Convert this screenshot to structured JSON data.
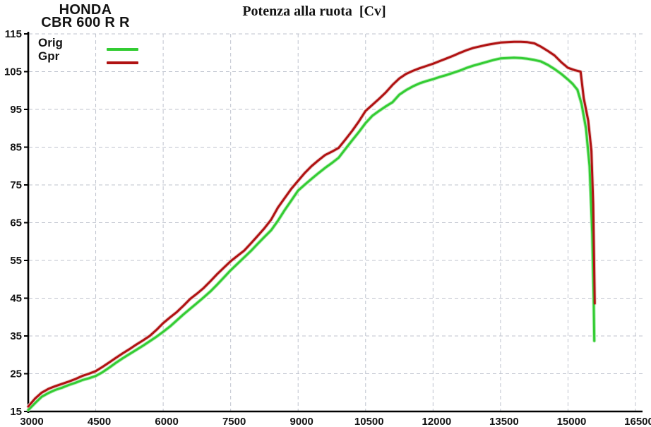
{
  "header": {
    "brand": "HONDA",
    "model": "CBR 600 R R"
  },
  "title": "Potenza alla ruota  [Cv]",
  "legend": [
    {
      "label": "Orig"
    },
    {
      "label": "Gpr"
    }
  ],
  "colors": {
    "background": "#ffffff",
    "axis": "#000000",
    "grid": "#bfc3ce",
    "text": "#141414",
    "orig_green": "#33cc33",
    "gpr_red": "#b01212"
  },
  "chart_data": {
    "type": "line",
    "title": "Potenza alla ruota [Cv]",
    "xlabel": "",
    "ylabel": "",
    "xlim": [
      3000,
      16500
    ],
    "ylim": [
      15,
      115
    ],
    "x_ticks": [
      3000,
      4500,
      6000,
      7500,
      9000,
      10500,
      12000,
      13500,
      15000,
      16500
    ],
    "y_ticks": [
      15,
      25,
      35,
      45,
      55,
      65,
      75,
      85,
      95,
      105,
      115
    ],
    "grid": true,
    "grid_dash": "5 4",
    "grid_color": "#bfc3ce",
    "axis_color": "#000000",
    "legend_position": "top-left",
    "series": [
      {
        "name": "Orig",
        "color": "#33cc33",
        "halo": "#b7eeb7",
        "points": [
          [
            3000,
            15.4
          ],
          [
            3150,
            17.2
          ],
          [
            3300,
            18.9
          ],
          [
            3450,
            19.9
          ],
          [
            3600,
            20.7
          ],
          [
            3750,
            21.3
          ],
          [
            3900,
            22.0
          ],
          [
            4050,
            22.6
          ],
          [
            4200,
            23.3
          ],
          [
            4350,
            23.8
          ],
          [
            4500,
            24.4
          ],
          [
            4650,
            25.4
          ],
          [
            4800,
            26.6
          ],
          [
            4950,
            27.9
          ],
          [
            5100,
            29.1
          ],
          [
            5250,
            30.2
          ],
          [
            5400,
            31.3
          ],
          [
            5550,
            32.4
          ],
          [
            5700,
            33.6
          ],
          [
            5850,
            34.8
          ],
          [
            6000,
            36.1
          ],
          [
            6150,
            37.5
          ],
          [
            6300,
            39.1
          ],
          [
            6450,
            40.7
          ],
          [
            6600,
            42.2
          ],
          [
            6750,
            43.7
          ],
          [
            6900,
            45.2
          ],
          [
            7050,
            46.8
          ],
          [
            7200,
            48.6
          ],
          [
            7350,
            50.5
          ],
          [
            7500,
            52.4
          ],
          [
            7650,
            54.1
          ],
          [
            7800,
            55.8
          ],
          [
            7950,
            57.5
          ],
          [
            8100,
            59.4
          ],
          [
            8250,
            61.2
          ],
          [
            8400,
            63.0
          ],
          [
            8550,
            65.5
          ],
          [
            8700,
            68.3
          ],
          [
            8850,
            70.9
          ],
          [
            9000,
            73.5
          ],
          [
            9150,
            75.1
          ],
          [
            9300,
            76.6
          ],
          [
            9450,
            78.1
          ],
          [
            9600,
            79.5
          ],
          [
            9750,
            80.8
          ],
          [
            9900,
            82.2
          ],
          [
            10050,
            84.5
          ],
          [
            10200,
            86.8
          ],
          [
            10350,
            89.0
          ],
          [
            10500,
            91.4
          ],
          [
            10650,
            93.3
          ],
          [
            10800,
            94.6
          ],
          [
            10950,
            95.8
          ],
          [
            11100,
            96.9
          ],
          [
            11250,
            98.9
          ],
          [
            11400,
            100.1
          ],
          [
            11550,
            101.1
          ],
          [
            11700,
            101.9
          ],
          [
            11850,
            102.5
          ],
          [
            12000,
            103.0
          ],
          [
            12150,
            103.6
          ],
          [
            12300,
            104.1
          ],
          [
            12450,
            104.7
          ],
          [
            12600,
            105.3
          ],
          [
            12750,
            106.0
          ],
          [
            12900,
            106.6
          ],
          [
            13050,
            107.1
          ],
          [
            13200,
            107.6
          ],
          [
            13350,
            108.1
          ],
          [
            13500,
            108.5
          ],
          [
            13650,
            108.6
          ],
          [
            13800,
            108.7
          ],
          [
            13950,
            108.6
          ],
          [
            14100,
            108.4
          ],
          [
            14250,
            108.1
          ],
          [
            14400,
            107.7
          ],
          [
            14550,
            106.8
          ],
          [
            14700,
            105.7
          ],
          [
            14850,
            104.4
          ],
          [
            15000,
            102.9
          ],
          [
            15100,
            101.8
          ],
          [
            15210,
            100.2
          ],
          [
            15300,
            96.5
          ],
          [
            15400,
            90.0
          ],
          [
            15480,
            80.0
          ],
          [
            15540,
            62.0
          ],
          [
            15570,
            45.0
          ],
          [
            15585,
            33.7
          ]
        ]
      },
      {
        "name": "Gpr",
        "color": "#b01212",
        "halo": "#e9c8c8",
        "points": [
          [
            3000,
            16.3
          ],
          [
            3150,
            18.4
          ],
          [
            3300,
            20.0
          ],
          [
            3450,
            21.0
          ],
          [
            3600,
            21.7
          ],
          [
            3750,
            22.3
          ],
          [
            3900,
            22.9
          ],
          [
            4050,
            23.6
          ],
          [
            4200,
            24.4
          ],
          [
            4350,
            25.0
          ],
          [
            4500,
            25.7
          ],
          [
            4650,
            26.8
          ],
          [
            4800,
            28.0
          ],
          [
            4950,
            29.2
          ],
          [
            5100,
            30.4
          ],
          [
            5250,
            31.5
          ],
          [
            5400,
            32.7
          ],
          [
            5550,
            33.8
          ],
          [
            5700,
            35.0
          ],
          [
            5850,
            36.6
          ],
          [
            6000,
            38.4
          ],
          [
            6150,
            39.9
          ],
          [
            6300,
            41.3
          ],
          [
            6450,
            43.0
          ],
          [
            6600,
            44.8
          ],
          [
            6750,
            46.2
          ],
          [
            6900,
            47.7
          ],
          [
            7050,
            49.5
          ],
          [
            7200,
            51.4
          ],
          [
            7350,
            53.1
          ],
          [
            7500,
            54.8
          ],
          [
            7650,
            56.2
          ],
          [
            7800,
            57.6
          ],
          [
            7950,
            59.5
          ],
          [
            8100,
            61.5
          ],
          [
            8250,
            63.5
          ],
          [
            8400,
            65.8
          ],
          [
            8550,
            69.0
          ],
          [
            8700,
            71.5
          ],
          [
            8850,
            74.0
          ],
          [
            9000,
            76.1
          ],
          [
            9150,
            78.2
          ],
          [
            9300,
            80.0
          ],
          [
            9450,
            81.5
          ],
          [
            9600,
            82.9
          ],
          [
            9750,
            83.8
          ],
          [
            9900,
            84.8
          ],
          [
            10050,
            87.0
          ],
          [
            10200,
            89.3
          ],
          [
            10350,
            91.8
          ],
          [
            10500,
            94.6
          ],
          [
            10650,
            96.2
          ],
          [
            10800,
            97.8
          ],
          [
            10950,
            99.5
          ],
          [
            11100,
            101.5
          ],
          [
            11250,
            103.2
          ],
          [
            11400,
            104.4
          ],
          [
            11550,
            105.2
          ],
          [
            11700,
            105.9
          ],
          [
            11850,
            106.5
          ],
          [
            12000,
            107.1
          ],
          [
            12150,
            107.8
          ],
          [
            12300,
            108.5
          ],
          [
            12450,
            109.2
          ],
          [
            12600,
            110.0
          ],
          [
            12750,
            110.7
          ],
          [
            12900,
            111.3
          ],
          [
            13050,
            111.7
          ],
          [
            13200,
            112.1
          ],
          [
            13350,
            112.4
          ],
          [
            13500,
            112.7
          ],
          [
            13650,
            112.8
          ],
          [
            13800,
            112.9
          ],
          [
            13950,
            112.9
          ],
          [
            14100,
            112.8
          ],
          [
            14250,
            112.5
          ],
          [
            14400,
            111.6
          ],
          [
            14550,
            110.5
          ],
          [
            14700,
            109.3
          ],
          [
            14850,
            107.5
          ],
          [
            15000,
            106.0
          ],
          [
            15150,
            105.4
          ],
          [
            15280,
            105.0
          ],
          [
            15350,
            98.0
          ],
          [
            15450,
            92.0
          ],
          [
            15520,
            84.0
          ],
          [
            15560,
            70.0
          ],
          [
            15580,
            55.0
          ],
          [
            15595,
            43.6
          ]
        ]
      }
    ]
  }
}
